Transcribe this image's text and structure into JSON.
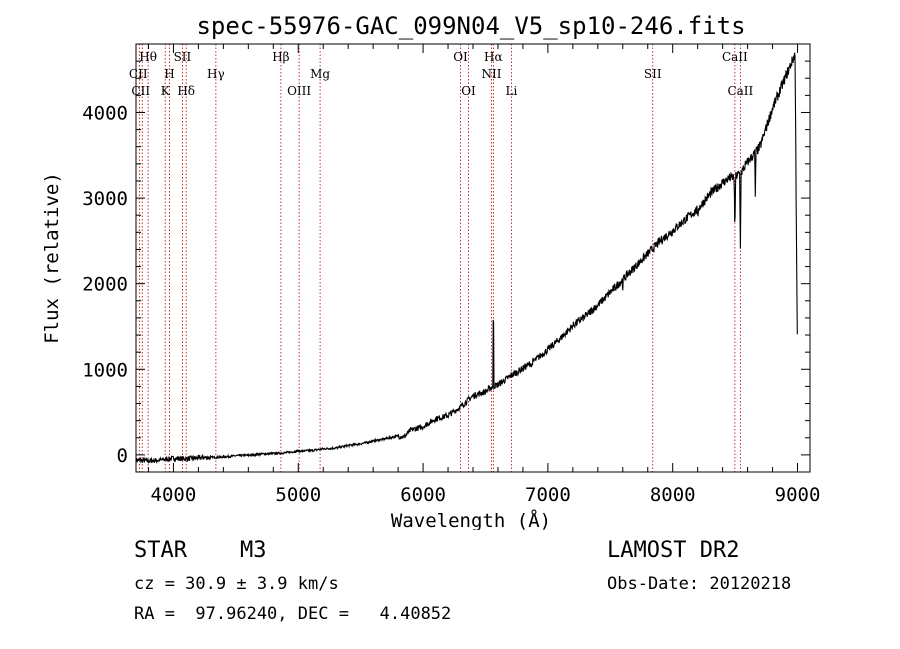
{
  "chart_data": {
    "type": "line",
    "title": "spec-55976-GAC_099N04_V5_sp10-246.fits",
    "xlabel": "Wavelength (Å)",
    "ylabel": "Flux (relative)",
    "xlim": [
      3700,
      9100
    ],
    "ylim": [
      -200,
      4800
    ],
    "xticks": [
      4000,
      5000,
      6000,
      7000,
      8000,
      9000
    ],
    "yticks": [
      0,
      1000,
      2000,
      3000,
      4000
    ],
    "grid": false,
    "series": [
      {
        "x": [
          3700,
          3800,
          3900,
          4000,
          4100,
          4200,
          4300,
          4400,
          4500,
          4600,
          4700,
          4800,
          4900,
          5000,
          5100,
          5200,
          5300,
          5400,
          5500,
          5600,
          5700,
          5800,
          5850,
          5900,
          6000,
          6100,
          6200,
          6300,
          6400,
          6500,
          6560,
          6600,
          6700,
          6800,
          6900,
          7000,
          7100,
          7200,
          7300,
          7400,
          7500,
          7600,
          7700,
          7800,
          7900,
          8000,
          8100,
          8200,
          8300,
          8400,
          8450,
          8500,
          8550,
          8600,
          8700,
          8800,
          8900,
          9000
        ],
        "y": [
          -60,
          -70,
          -60,
          -40,
          -45,
          -35,
          -30,
          -25,
          -10,
          -5,
          10,
          15,
          25,
          45,
          50,
          70,
          80,
          110,
          130,
          160,
          190,
          220,
          210,
          290,
          330,
          420,
          460,
          560,
          690,
          740,
          800,
          820,
          920,
          1010,
          1110,
          1230,
          1360,
          1510,
          1620,
          1750,
          1900,
          2050,
          2200,
          2350,
          2500,
          2620,
          2750,
          2870,
          3050,
          3180,
          3230,
          3250,
          3300,
          3420,
          3600,
          4050,
          4400,
          4750
        ]
      }
    ],
    "annotations": [
      {
        "text": "Hθ",
        "x": 3797,
        "row": 1
      },
      {
        "text": "CII",
        "x": 3718,
        "row": 2
      },
      {
        "text": "CII",
        "x": 3738,
        "row": 3
      },
      {
        "text": "H",
        "x": 3968,
        "row": 2
      },
      {
        "text": "K",
        "x": 3934,
        "row": 3
      },
      {
        "text": "SII",
        "x": 4072,
        "row": 1
      },
      {
        "text": "Hδ",
        "x": 4102,
        "row": 3
      },
      {
        "text": "Hγ",
        "x": 4340,
        "row": 2
      },
      {
        "text": "Hβ",
        "x": 4861,
        "row": 1
      },
      {
        "text": "OIII",
        "x": 5007,
        "row": 3
      },
      {
        "text": "Mg",
        "x": 5175,
        "row": 2
      },
      {
        "text": "OI",
        "x": 6300,
        "row": 1
      },
      {
        "text": "OI",
        "x": 6364,
        "row": 3
      },
      {
        "text": "Hα",
        "x": 6563,
        "row": 1
      },
      {
        "text": "NII",
        "x": 6548,
        "row": 2
      },
      {
        "text": "Li",
        "x": 6708,
        "row": 3
      },
      {
        "text": "SII",
        "x": 7840,
        "row": 2
      },
      {
        "text": "CaII",
        "x": 8498,
        "row": 1
      },
      {
        "text": "CaII",
        "x": 8542,
        "row": 3
      }
    ],
    "line_markers": [
      3727,
      3750,
      3797,
      3934,
      3968,
      4072,
      4102,
      4340,
      4861,
      5007,
      5175,
      6300,
      6364,
      6548,
      6563,
      6708,
      7840,
      8498,
      8542
    ]
  },
  "colors": {
    "spectrum": "#000000",
    "markers": "#b40000",
    "axes": "#000000"
  },
  "footer": {
    "object_type": "STAR",
    "subclass": "M3",
    "survey": "LAMOST DR2",
    "cz": "cz = 30.9 ± 3.9 km/s",
    "obs_date": "Obs-Date: 20120218",
    "radec": "RA =  97.96240, DEC =   4.40852"
  }
}
